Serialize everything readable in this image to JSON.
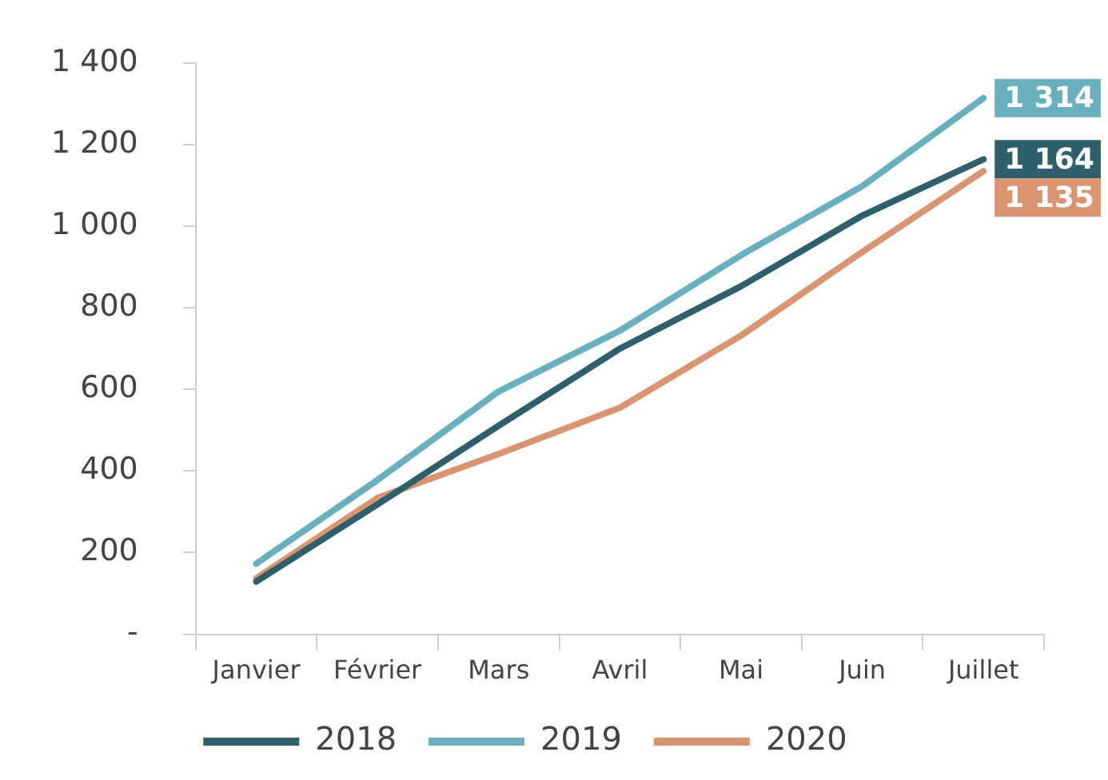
{
  "chart_data": {
    "type": "line",
    "categories": [
      "Janvier",
      "Février",
      "Mars",
      "Avril",
      "Mai",
      "Juin",
      "Juillet"
    ],
    "series": [
      {
        "name": "2018",
        "color": "#2e5f6b",
        "values": [
          129,
          318,
          511,
          700,
          853,
          1026,
          1164
        ],
        "value_labels": [
          null,
          null,
          null,
          null,
          null,
          null,
          "1 164"
        ]
      },
      {
        "name": "2019",
        "color": "#6aafbd",
        "values": [
          173,
          378,
          595,
          744,
          929,
          1098,
          1314
        ],
        "value_labels": [
          null,
          null,
          null,
          null,
          null,
          null,
          "1 314"
        ]
      },
      {
        "name": "2020",
        "color": "#d99572",
        "values": [
          137,
          334,
          442,
          555,
          732,
          937,
          1135
        ],
        "value_labels": [
          null,
          null,
          null,
          null,
          null,
          null,
          "1 135"
        ]
      }
    ],
    "ylim": [
      0,
      1400
    ],
    "yticks": [
      {
        "value": 0,
        "label": "-"
      },
      {
        "value": 200,
        "label": "200"
      },
      {
        "value": 400,
        "label": "400"
      },
      {
        "value": 600,
        "label": "600"
      },
      {
        "value": 800,
        "label": "800"
      },
      {
        "value": 1000,
        "label": "1 000"
      },
      {
        "value": 1200,
        "label": "1 200"
      },
      {
        "value": 1400,
        "label": "1 400"
      }
    ],
    "grid": false,
    "legend": "bottom",
    "marker": "none",
    "line_style": "solid"
  }
}
